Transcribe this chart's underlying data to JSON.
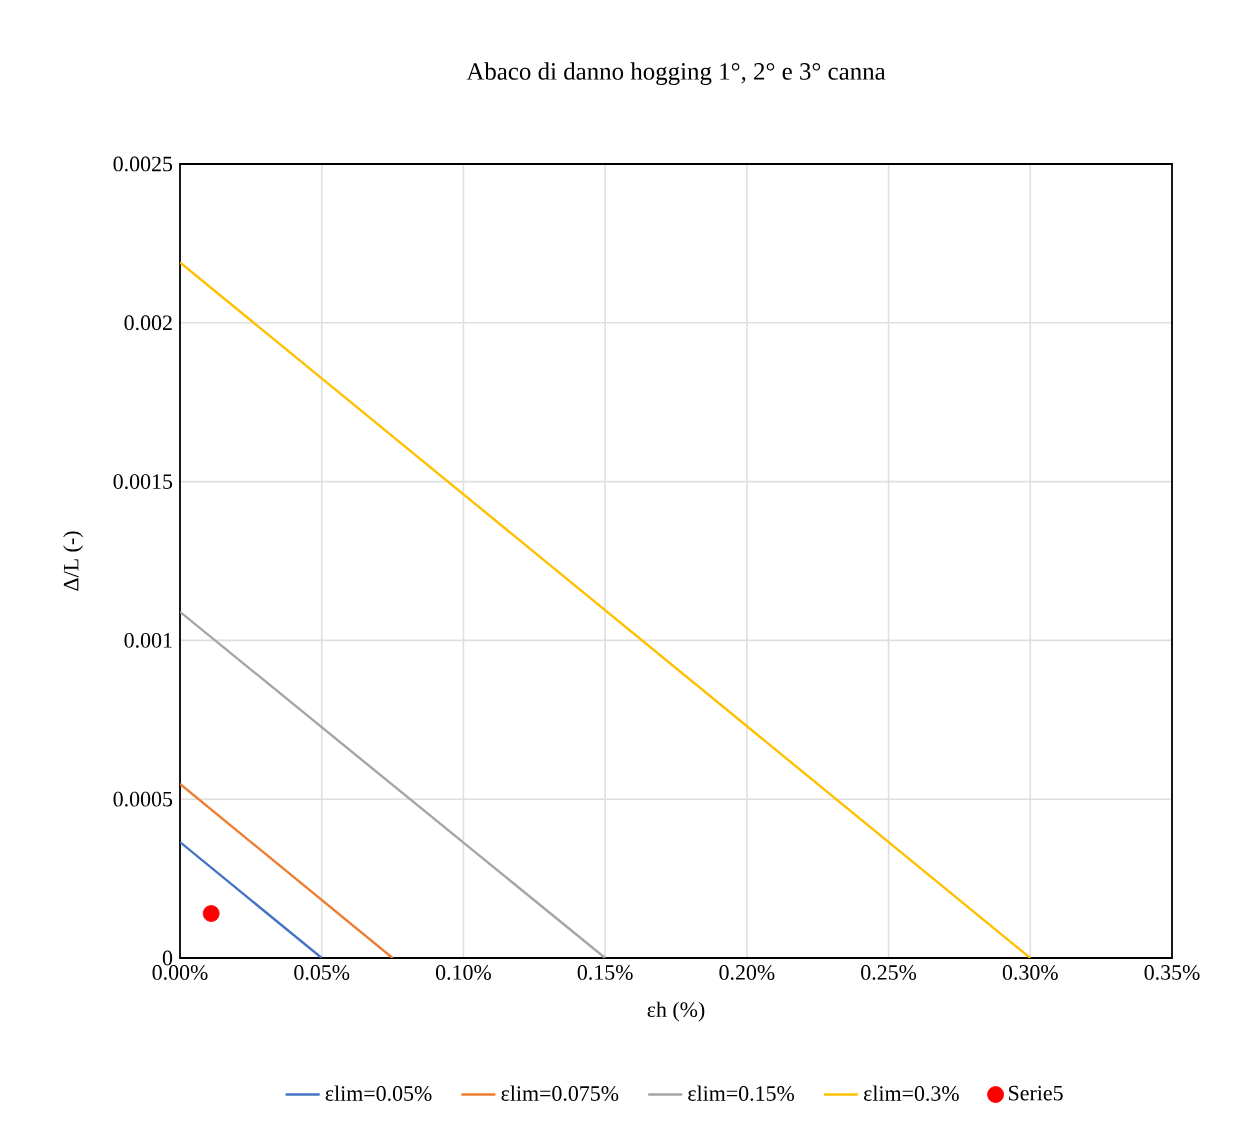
{
  "chart_data": {
    "type": "line",
    "title": "Abaco di danno hogging  1°, 2° e 3° canna",
    "xlabel": "εh (%)",
    "ylabel": "Δ/L (-)",
    "series": [
      {
        "name": "εlim=0.05%",
        "color": "#4472c4",
        "x": [
          0,
          0.05
        ],
        "values": [
          0.000365,
          0
        ]
      },
      {
        "name": "εlim=0.075%",
        "color": "#ed7d31",
        "x": [
          0,
          0.075
        ],
        "values": [
          0.000548,
          0
        ]
      },
      {
        "name": "εlim=0.15%",
        "color": "#a5a5a5",
        "x": [
          0,
          0.15
        ],
        "values": [
          0.00109,
          0
        ]
      },
      {
        "name": "εlim=0.3%",
        "color": "#ffc000",
        "x": [
          0,
          0.3
        ],
        "values": [
          0.00219,
          0
        ]
      },
      {
        "name": "Serie5",
        "type": "scatter",
        "color": "#ff0000",
        "marker": "circle",
        "x": [
          0.011
        ],
        "values": [
          0.00014
        ]
      }
    ],
    "xlim": [
      0,
      0.35
    ],
    "xticks": [
      {
        "value": 0,
        "label": "0.00%"
      },
      {
        "value": 0.05,
        "label": "0.05%"
      },
      {
        "value": 0.1,
        "label": "0.10%"
      },
      {
        "value": 0.15,
        "label": "0.15%"
      },
      {
        "value": 0.2,
        "label": "0.20%"
      },
      {
        "value": 0.25,
        "label": "0.25%"
      },
      {
        "value": 0.3,
        "label": "0.30%"
      },
      {
        "value": 0.35,
        "label": "0.35%"
      }
    ],
    "ylim": [
      0,
      0.0025
    ],
    "yticks": [
      0,
      0.0005,
      0.001,
      0.0015,
      0.002,
      0.0025
    ],
    "grid": true,
    "legend": "bottom",
    "marker": "none",
    "line_style": "solid"
  }
}
